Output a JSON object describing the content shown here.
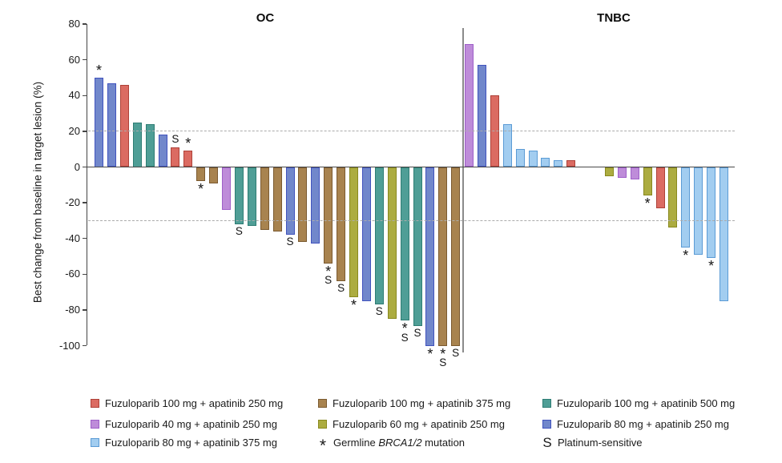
{
  "chart_data": {
    "type": "bar",
    "title": "",
    "ylabel": "Best change from baseline in target lesion (%)",
    "ylim": [
      -100,
      80
    ],
    "yticks": [
      80,
      60,
      40,
      20,
      0,
      -20,
      -40,
      -60,
      -80,
      -100
    ],
    "reference_lines_y": [
      20,
      -30
    ],
    "grid": "off",
    "legend_position": "bottom",
    "mark_meanings": {
      "*": "Germline BRCA1/2 mutation",
      "S": "Platinum-sensitive"
    },
    "panels": [
      {
        "title": "OC",
        "bars": [
          {
            "value": 50,
            "color": "royal",
            "mark": "*"
          },
          {
            "value": 47,
            "color": "royal"
          },
          {
            "value": 46,
            "color": "red"
          },
          {
            "value": 25,
            "color": "teal"
          },
          {
            "value": 24,
            "color": "teal"
          },
          {
            "value": 18,
            "color": "royal"
          },
          {
            "value": 11,
            "color": "red",
            "mark": "S"
          },
          {
            "value": 9,
            "color": "red",
            "mark": "*"
          },
          {
            "value": -8,
            "color": "brown",
            "mark": "*"
          },
          {
            "value": -9,
            "color": "brown"
          },
          {
            "value": -24,
            "color": "orchid"
          },
          {
            "value": -32,
            "color": "teal",
            "mark": "S"
          },
          {
            "value": -33,
            "color": "teal"
          },
          {
            "value": -35,
            "color": "brown"
          },
          {
            "value": -36,
            "color": "brown"
          },
          {
            "value": -38,
            "color": "royal",
            "mark": "S"
          },
          {
            "value": -42,
            "color": "brown"
          },
          {
            "value": -43,
            "color": "royal"
          },
          {
            "value": -54,
            "color": "brown",
            "mark": "*S"
          },
          {
            "value": -64,
            "color": "brown",
            "mark": "S"
          },
          {
            "value": -73,
            "color": "olive",
            "mark": "*"
          },
          {
            "value": -75,
            "color": "royal"
          },
          {
            "value": -77,
            "color": "teal",
            "mark": "S"
          },
          {
            "value": -85,
            "color": "olive"
          },
          {
            "value": -86,
            "color": "teal",
            "mark": "*S"
          },
          {
            "value": -89,
            "color": "teal",
            "mark": "S"
          },
          {
            "value": -100,
            "color": "royal",
            "mark": "*"
          },
          {
            "value": -100,
            "color": "brown",
            "mark": "*S"
          },
          {
            "value": -100,
            "color": "brown",
            "mark": "S"
          }
        ]
      },
      {
        "title": "TNBC",
        "bars": [
          {
            "value": 69,
            "color": "orchid"
          },
          {
            "value": 57,
            "color": "royal"
          },
          {
            "value": 40,
            "color": "red"
          },
          {
            "value": 24,
            "color": "sky"
          },
          {
            "value": 10,
            "color": "sky"
          },
          {
            "value": 9,
            "color": "sky"
          },
          {
            "value": 5,
            "color": "sky"
          },
          {
            "value": 4,
            "color": "sky"
          },
          {
            "value": 4,
            "color": "red"
          },
          {
            "value": 0,
            "color": "none"
          },
          {
            "value": 0,
            "color": "none"
          },
          {
            "value": -5,
            "color": "olive"
          },
          {
            "value": -6,
            "color": "orchid"
          },
          {
            "value": -7,
            "color": "orchid"
          },
          {
            "value": -16,
            "color": "olive",
            "mark": "*"
          },
          {
            "value": -23,
            "color": "red"
          },
          {
            "value": -34,
            "color": "olive"
          },
          {
            "value": -45,
            "color": "sky",
            "mark": "*"
          },
          {
            "value": -49,
            "color": "sky"
          },
          {
            "value": -51,
            "color": "sky",
            "mark": "*"
          },
          {
            "value": -75,
            "color": "sky"
          }
        ]
      }
    ],
    "colors": {
      "red": {
        "fill": "#DB6B62",
        "stroke": "#AE4138"
      },
      "brown": {
        "fill": "#A8834F",
        "stroke": "#7B5A30"
      },
      "teal": {
        "fill": "#4F9E96",
        "stroke": "#2E7D74"
      },
      "orchid": {
        "fill": "#BE8CD9",
        "stroke": "#9E5FC8"
      },
      "olive": {
        "fill": "#ACAC40",
        "stroke": "#89891E"
      },
      "royal": {
        "fill": "#7187CB",
        "stroke": "#4153BE"
      },
      "sky": {
        "fill": "#A2CDF0",
        "stroke": "#5B9BD5"
      }
    },
    "legend": {
      "rows": [
        [
          {
            "swatch": "red",
            "label": "Fuzuloparib 100 mg + apatinib 250 mg"
          },
          {
            "swatch": "brown",
            "label": "Fuzuloparib 100 mg + apatinib 375 mg"
          },
          {
            "swatch": "teal",
            "label": "Fuzuloparib 100 mg + apatinib 500 mg"
          }
        ],
        [
          {
            "swatch": "orchid",
            "label": "Fuzuloparib 40 mg + apatinib 250 mg"
          },
          {
            "swatch": "olive",
            "label": "Fuzuloparib 60 mg + apatinib 250 mg"
          },
          {
            "swatch": "royal",
            "label": "Fuzuloparib 80 mg + apatinib 250 mg"
          }
        ],
        [
          {
            "swatch": "sky",
            "label": "Fuzuloparib 80 mg + apatinib 375 mg"
          },
          {
            "symbol": "*",
            "label": "Germline BRCA1/2 mutation",
            "italic_part": "BRCA1/2"
          },
          {
            "symbol": "S",
            "label": "Platinum-sensitive"
          }
        ]
      ]
    }
  }
}
